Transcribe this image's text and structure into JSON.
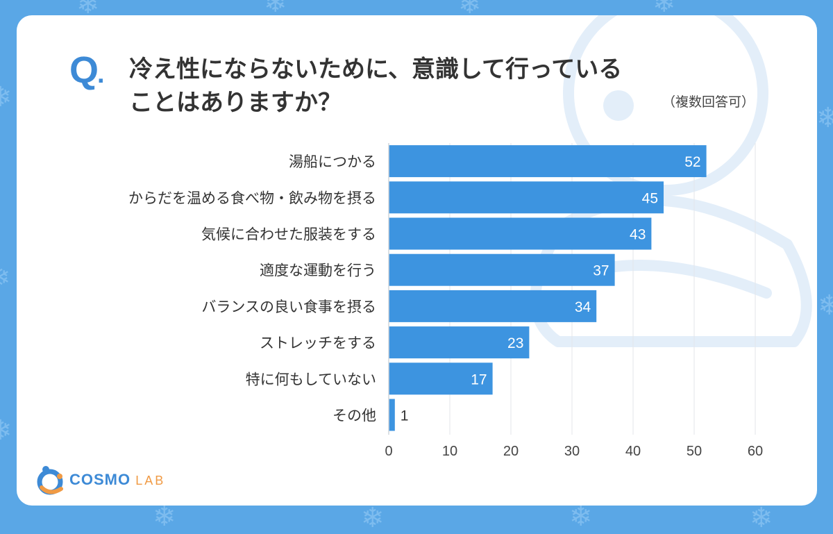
{
  "header": {
    "q_label": "Q",
    "q_dot": ".",
    "question_line1": "冷え性にならないために、意識して行っている",
    "question_line2": "ことはありますか？",
    "note": "（複数回答可）"
  },
  "logo": {
    "name_part1": "COSMO",
    "name_part2": "LAB"
  },
  "colors": {
    "bar": "#3d94e0",
    "accent": "#3d8ad6",
    "background": "#5aa7e6",
    "logo_accent": "#f09a44"
  },
  "chart_data": {
    "type": "bar",
    "orientation": "horizontal",
    "categories": [
      "湯船につかる",
      "からだを温める食べ物・飲み物を摂る",
      "気候に合わせた服装をする",
      "適度な運動を行う",
      "バランスの良い食事を摂る",
      "ストレッチをする",
      "特に何もしていない",
      "その他"
    ],
    "values": [
      52,
      45,
      43,
      37,
      34,
      23,
      17,
      1
    ],
    "xlim": [
      0,
      60
    ],
    "ticks": [
      0,
      10,
      20,
      30,
      40,
      50,
      60
    ],
    "grid": true
  }
}
